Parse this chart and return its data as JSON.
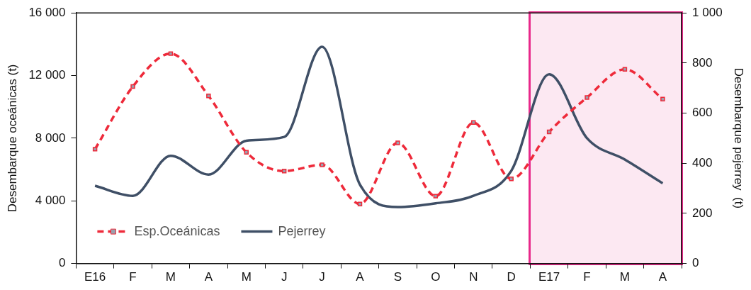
{
  "chart_data": {
    "type": "line",
    "ylabel": "Desembarque oceánicas (t)",
    "y2label": "Desembarque pejerrey  (t)",
    "categories": [
      "E16",
      "F",
      "M",
      "A",
      "M",
      "J",
      "J",
      "A",
      "S",
      "O",
      "N",
      "D",
      "E17",
      "F",
      "M",
      "A"
    ],
    "series": [
      {
        "name": "Esp.Oceánicas",
        "color": "#ee2a3a",
        "line_style": "dashed",
        "marker": "square",
        "values": [
          7300,
          11300,
          13400,
          10700,
          7100,
          5900,
          6300,
          3800,
          7700,
          4300,
          9000,
          5400,
          8400,
          10600,
          12400,
          10500
        ]
      },
      {
        "name": "Pejerrey",
        "color": "#3f4f66",
        "line_style": "solid",
        "marker": "none",
        "axis": "y2",
        "values": [
          310,
          270,
          430,
          355,
          490,
          505,
          865,
          315,
          225,
          240,
          270,
          370,
          755,
          500,
          415,
          320
        ]
      }
    ],
    "ylim": [
      0,
      16000
    ],
    "yticks": [
      0,
      {
        "value": 4000,
        "label": "4 000"
      },
      {
        "value": 8000,
        "label": "8 000"
      },
      {
        "value": 12000,
        "label": "12 000"
      },
      {
        "value": 16000,
        "label": "16 000"
      }
    ],
    "y2lim": [
      0,
      1000
    ],
    "y2ticks": [
      0,
      200,
      400,
      600,
      800,
      {
        "value": 1000,
        "label": "1 000"
      }
    ],
    "legend": "bottom left",
    "grid": false
  }
}
